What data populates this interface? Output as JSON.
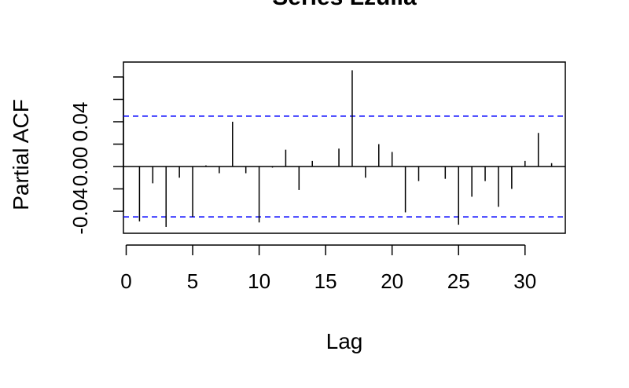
{
  "chart_data": {
    "type": "bar",
    "title": "Series  Lzuila",
    "xlabel": "Lag",
    "ylabel": "Partial ACF",
    "xlim": [
      0,
      33
    ],
    "ylim": [
      -0.06,
      0.095
    ],
    "x_ticks": [
      0,
      5,
      10,
      15,
      20,
      25,
      30
    ],
    "x_tick_labels": [
      "0",
      "5",
      "10",
      "15",
      "20",
      "25",
      "30"
    ],
    "y_ticks": [
      -0.04,
      0,
      0.04
    ],
    "y_tick_labels": [
      "-0.04",
      "0.00",
      "0.04"
    ],
    "y_tick_marks": [
      -0.04,
      -0.02,
      0,
      0.02,
      0.04,
      0.06,
      0.08
    ],
    "confidence_bound": 0.045,
    "confidence_color": "#0000ff",
    "bar_color": "#000000",
    "lags": [
      1,
      2,
      3,
      4,
      5,
      6,
      7,
      8,
      9,
      10,
      11,
      12,
      13,
      14,
      15,
      16,
      17,
      18,
      19,
      20,
      21,
      22,
      23,
      24,
      25,
      26,
      27,
      28,
      29,
      30,
      31,
      32
    ],
    "values": [
      -0.049,
      -0.015,
      -0.054,
      -0.01,
      -0.045,
      0.001,
      -0.006,
      0.04,
      -0.006,
      -0.05,
      -0.001,
      0.015,
      -0.021,
      0.005,
      0.0,
      0.016,
      0.086,
      -0.01,
      0.02,
      0.013,
      -0.041,
      -0.013,
      0.0,
      -0.011,
      -0.052,
      -0.027,
      -0.013,
      -0.036,
      -0.02,
      0.005,
      0.03,
      0.003
    ]
  }
}
